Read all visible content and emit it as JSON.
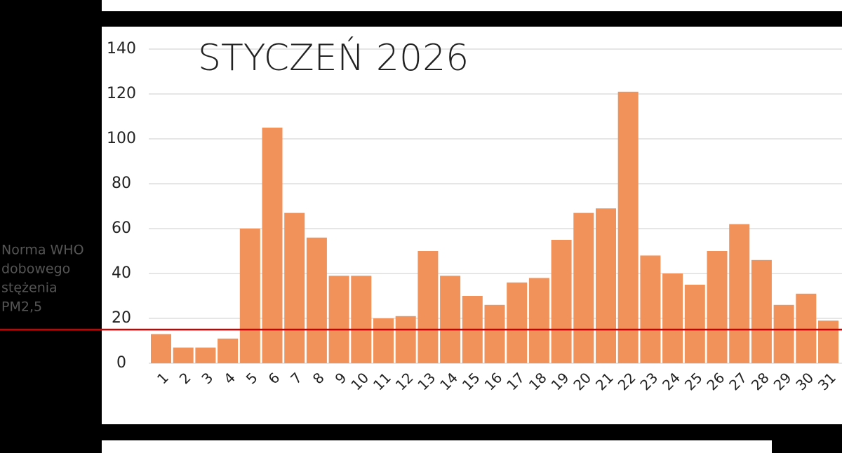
{
  "chart_data": {
    "type": "bar",
    "title": "STYCZEŃ 2026",
    "categories": [
      "1",
      "2",
      "3",
      "4",
      "5",
      "6",
      "7",
      "8",
      "9",
      "10",
      "11",
      "12",
      "13",
      "14",
      "15",
      "16",
      "17",
      "18",
      "19",
      "20",
      "21",
      "22",
      "23",
      "24",
      "25",
      "26",
      "27",
      "28",
      "29",
      "30",
      "31"
    ],
    "values": [
      13,
      7,
      7,
      11,
      60,
      105,
      67,
      56,
      39,
      39,
      20,
      21,
      50,
      39,
      30,
      26,
      36,
      38,
      55,
      67,
      69,
      121,
      48,
      40,
      35,
      50,
      62,
      46,
      26,
      31,
      19
    ],
    "color": "#f0925a",
    "ylim": [
      0,
      140
    ],
    "yticks": [
      0,
      20,
      40,
      60,
      80,
      100,
      120,
      140
    ],
    "grid": true,
    "reference_line": {
      "value": 15,
      "color": "#cc0000",
      "label_lines": [
        "Norma WHO",
        "dobowego",
        "stężenia",
        "PM2,5"
      ]
    }
  }
}
